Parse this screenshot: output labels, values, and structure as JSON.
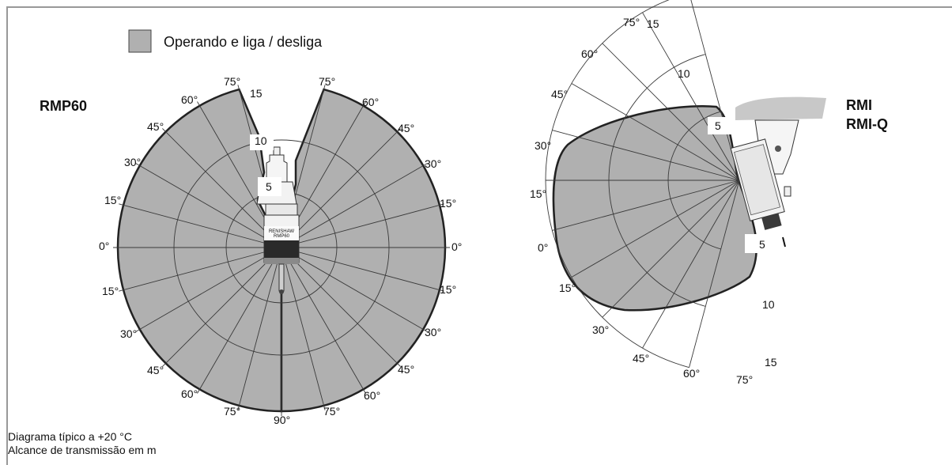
{
  "legend": {
    "label": "Operando e liga / desliga",
    "swatch_color": "#b0b0b0"
  },
  "left": {
    "title": "RMP60",
    "angle_labels_top": [
      "75°",
      "60°",
      "45°",
      "30°",
      "15°"
    ],
    "angle_labels_side": [
      "0°",
      "0°"
    ],
    "angle_labels_bottom": [
      "15°",
      "30°",
      "45°",
      "60°",
      "75°",
      "90°"
    ],
    "range_labels": [
      "15",
      "10",
      "5"
    ],
    "device_text": [
      "RENISHAW",
      "RMP60"
    ]
  },
  "right": {
    "title_line1": "RMI",
    "title_line2": "RMI-Q",
    "range_labels_top": [
      "15",
      "10",
      "5"
    ],
    "range_labels_bottom": [
      "5",
      "10",
      "15"
    ],
    "angle_labels": [
      "75°",
      "60°",
      "45°",
      "30°",
      "15°",
      "0°",
      "15°",
      "30°",
      "45°",
      "60°",
      "75°"
    ]
  },
  "footer": {
    "line1": "Diagrama típico a +20 °C",
    "line2": "Alcance de transmissão em m"
  },
  "colors": {
    "fill": "#b0b0b0",
    "line": "#222222",
    "grid": "#3a3a3a",
    "border": "#999999"
  }
}
